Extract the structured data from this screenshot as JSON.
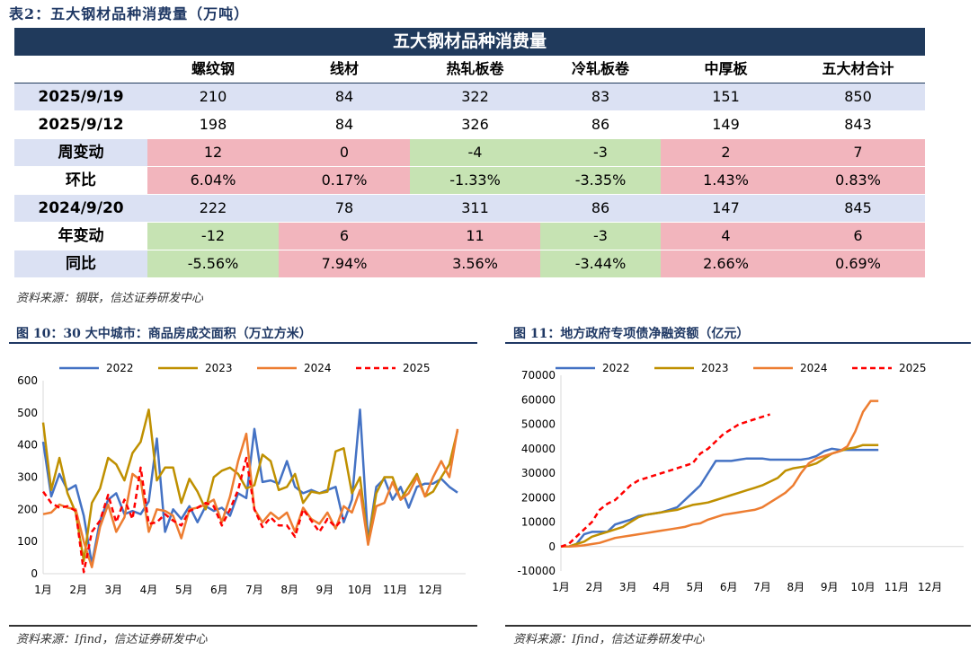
{
  "table": {
    "caption": "表2：五大钢材品种消费量（万吨）",
    "banner": "五大钢材品种消费量",
    "headers": [
      "螺纹钢",
      "线材",
      "热轧板卷",
      "冷轧板卷",
      "中厚板",
      "五大材合计"
    ],
    "rows": [
      {
        "label": "2025/9/19",
        "values": [
          "210",
          "84",
          "322",
          "83",
          "151",
          "850"
        ],
        "colors": [
          "blue",
          "blue",
          "blue",
          "blue",
          "blue",
          "blue"
        ],
        "label_color": "blue"
      },
      {
        "label": "2025/9/12",
        "values": [
          "198",
          "84",
          "326",
          "86",
          "149",
          "843"
        ],
        "colors": [
          "white",
          "white",
          "white",
          "white",
          "white",
          "white"
        ],
        "label_color": "white"
      },
      {
        "label": "周变动",
        "values": [
          "12",
          "0",
          "-4",
          "-3",
          "2",
          "7"
        ],
        "colors": [
          "red",
          "red",
          "green",
          "green",
          "red",
          "red"
        ],
        "label_color": "blue"
      },
      {
        "label": "环比",
        "values": [
          "6.04%",
          "0.17%",
          "-1.33%",
          "-3.35%",
          "1.43%",
          "0.83%"
        ],
        "colors": [
          "red",
          "red",
          "green",
          "green",
          "red",
          "red"
        ],
        "label_color": "white"
      },
      {
        "label": "2024/9/20",
        "values": [
          "222",
          "78",
          "311",
          "86",
          "147",
          "845"
        ],
        "colors": [
          "blue",
          "blue",
          "blue",
          "blue",
          "blue",
          "blue"
        ],
        "label_color": "blue"
      },
      {
        "label": "年变动",
        "values": [
          "-12",
          "6",
          "11",
          "-3",
          "4",
          "6"
        ],
        "colors": [
          "green",
          "red",
          "red",
          "green",
          "red",
          "red"
        ],
        "label_color": "white"
      },
      {
        "label": "同比",
        "values": [
          "-5.56%",
          "7.94%",
          "3.56%",
          "-3.44%",
          "2.66%",
          "0.69%"
        ],
        "colors": [
          "green",
          "red",
          "red",
          "green",
          "red",
          "red"
        ],
        "label_color": "blue"
      }
    ],
    "source": "资料来源：钢联，信达证券研发中心"
  },
  "colors": {
    "c2022": "#4472c4",
    "c2023": "#bf9000",
    "c2024": "#ed7d31",
    "c2025": "#ff0000",
    "title": "#1f3864",
    "header_bg": "#203a5c"
  },
  "fig10": {
    "title": "图 10：30 大中城市：商品房成交面积（万立方米）",
    "source": "资料来源：Ifind，信达证券研发中心",
    "chart_data": {
      "type": "line",
      "x_labels": [
        "1月",
        "2月",
        "3月",
        "4月",
        "5月",
        "6月",
        "7月",
        "8月",
        "9月",
        "10月",
        "11月",
        "12月"
      ],
      "ylim": [
        0,
        600
      ],
      "yticks": [
        0,
        100,
        200,
        300,
        400,
        500,
        600
      ],
      "legend": [
        "2022",
        "2023",
        "2024",
        "2025"
      ],
      "series": [
        {
          "name": "2022",
          "values": [
            410,
            240,
            310,
            260,
            275,
            180,
            30,
            165,
            230,
            250,
            185,
            195,
            185,
            225,
            420,
            130,
            200,
            170,
            210,
            160,
            210,
            195,
            205,
            180,
            250,
            235,
            450,
            285,
            290,
            280,
            350,
            270,
            250,
            260,
            250,
            260,
            270,
            160,
            230,
            510,
            100,
            270,
            295,
            230,
            270,
            205,
            270,
            280,
            280,
            295,
            270,
            252
          ]
        },
        {
          "name": "2023",
          "values": [
            470,
            260,
            360,
            250,
            190,
            40,
            220,
            265,
            360,
            340,
            290,
            375,
            410,
            510,
            290,
            330,
            330,
            220,
            295,
            255,
            200,
            300,
            320,
            330,
            310,
            265,
            275,
            370,
            350,
            260,
            270,
            310,
            220,
            255,
            250,
            255,
            380,
            390,
            250,
            300,
            95,
            250,
            300,
            300,
            230,
            270,
            310,
            240,
            255,
            300,
            340,
            445
          ]
        },
        {
          "name": "2024",
          "values": [
            185,
            190,
            215,
            205,
            200,
            100,
            20,
            145,
            215,
            130,
            175,
            310,
            290,
            130,
            200,
            195,
            180,
            110,
            200,
            205,
            215,
            230,
            160,
            240,
            350,
            435,
            200,
            160,
            190,
            170,
            190,
            130,
            205,
            170,
            155,
            190,
            140,
            210,
            190,
            260,
            90,
            210,
            220,
            285,
            230,
            250,
            300,
            240,
            300,
            350,
            300,
            450
          ]
        },
        {
          "name": "2025",
          "values": [
            255,
            220,
            205,
            210,
            195,
            5,
            130,
            165,
            245,
            160,
            230,
            170,
            330,
            155,
            160,
            185,
            165,
            150,
            195,
            205,
            220,
            210,
            150,
            200,
            260,
            360,
            200,
            145,
            175,
            150,
            150,
            115,
            200,
            165,
            130,
            170,
            145,
            175
          ]
        }
      ]
    }
  },
  "fig11": {
    "title": "图 11：地方政府专项债净融资额（亿元）",
    "source": "资料来源：Ifind，信达证券研发中心",
    "chart_data": {
      "type": "line",
      "x_labels": [
        "1月",
        "2月",
        "3月",
        "4月",
        "5月",
        "6月",
        "7月",
        "8月",
        "9月",
        "10月",
        "11月",
        "12月"
      ],
      "ylim": [
        -10000,
        70000
      ],
      "yticks": [
        -10000,
        0,
        10000,
        20000,
        30000,
        40000,
        50000,
        60000,
        70000
      ],
      "legend": [
        "2022",
        "2023",
        "2024",
        "2025"
      ],
      "series": [
        {
          "name": "2022",
          "values": [
            0,
            0,
            1000,
            5000,
            6000,
            6000,
            6000,
            9000,
            10000,
            11000,
            12500,
            13000,
            13500,
            14000,
            15000,
            16000,
            19000,
            22000,
            25000,
            30000,
            35000,
            35000,
            35000,
            35500,
            36000,
            36000,
            36000,
            35500,
            35500,
            35500,
            35500,
            35500,
            36000,
            37000,
            39000,
            40000,
            39500,
            39500,
            39500,
            39500,
            39500,
            39500
          ]
        },
        {
          "name": "2023",
          "values": [
            0,
            0,
            1000,
            2000,
            4000,
            5000,
            6000,
            7000,
            8000,
            10000,
            12000,
            13000,
            13500,
            14000,
            14500,
            15000,
            16000,
            17000,
            17500,
            18000,
            19000,
            20000,
            21000,
            22000,
            23000,
            24000,
            25000,
            26500,
            28000,
            31000,
            32000,
            32500,
            33000,
            34000,
            36000,
            38000,
            39000,
            40000,
            40500,
            41500,
            41500,
            41500
          ]
        },
        {
          "name": "2024",
          "values": [
            0,
            0,
            200,
            500,
            1000,
            1500,
            2500,
            3500,
            4000,
            4500,
            5000,
            5500,
            6000,
            6500,
            7000,
            7500,
            8000,
            9000,
            9500,
            11000,
            12000,
            13000,
            13500,
            14000,
            14500,
            15000,
            16000,
            18000,
            20000,
            22000,
            25000,
            30000,
            34000,
            36000,
            37000,
            38000,
            39000,
            41000,
            47000,
            55000,
            59500,
            59500
          ]
        },
        {
          "name": "2025",
          "values": [
            0,
            1000,
            4000,
            7000,
            10000,
            15000,
            17500,
            19000,
            22000,
            25000,
            27000,
            28000,
            29000,
            30000,
            31000,
            32000,
            33000,
            34000,
            38000,
            40000,
            43000,
            46000,
            48000,
            50000,
            51000,
            52000,
            53000,
            54000
          ]
        }
      ]
    }
  }
}
